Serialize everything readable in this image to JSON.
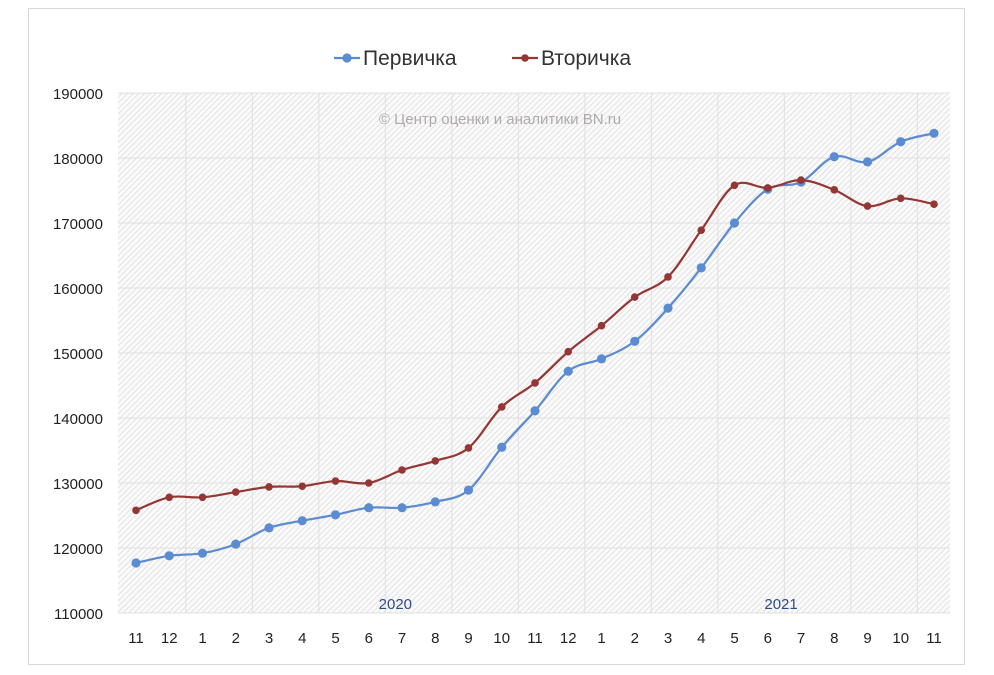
{
  "chart_data": {
    "type": "line",
    "title": "",
    "watermark": "© Центр оценки и аналитики BN.ru",
    "legend_position": "top-center",
    "categories": [
      "11",
      "12",
      "1",
      "2",
      "3",
      "4",
      "5",
      "6",
      "7",
      "8",
      "9",
      "10",
      "11",
      "12",
      "1",
      "2",
      "3",
      "4",
      "5",
      "6",
      "7",
      "8",
      "9",
      "10",
      "11"
    ],
    "year_labels": [
      {
        "text": "2020",
        "at_category_index": 7.8
      },
      {
        "text": "2021",
        "at_category_index": 19.4
      }
    ],
    "yticks": [
      "110000",
      "120000",
      "130000",
      "140000",
      "150000",
      "160000",
      "170000",
      "180000",
      "190000"
    ],
    "ylim": [
      110000,
      190000
    ],
    "grid": true,
    "series": [
      {
        "name": "Первичка",
        "color": "#5b8bd0",
        "values": [
          117700,
          118800,
          119200,
          120600,
          123100,
          124200,
          125100,
          126200,
          126200,
          127100,
          128900,
          135500,
          141100,
          147200,
          149100,
          151800,
          156900,
          163100,
          170000,
          175200,
          176300,
          180200,
          179400,
          182500,
          183800
        ]
      },
      {
        "name": "Вторичка",
        "color": "#943634",
        "values": [
          125800,
          127800,
          127800,
          128600,
          129400,
          129500,
          130300,
          130000,
          132000,
          133400,
          135400,
          141700,
          145400,
          150200,
          154200,
          158600,
          161700,
          168900,
          175800,
          175400,
          176600,
          175100,
          172600,
          173800,
          172900
        ]
      }
    ]
  }
}
